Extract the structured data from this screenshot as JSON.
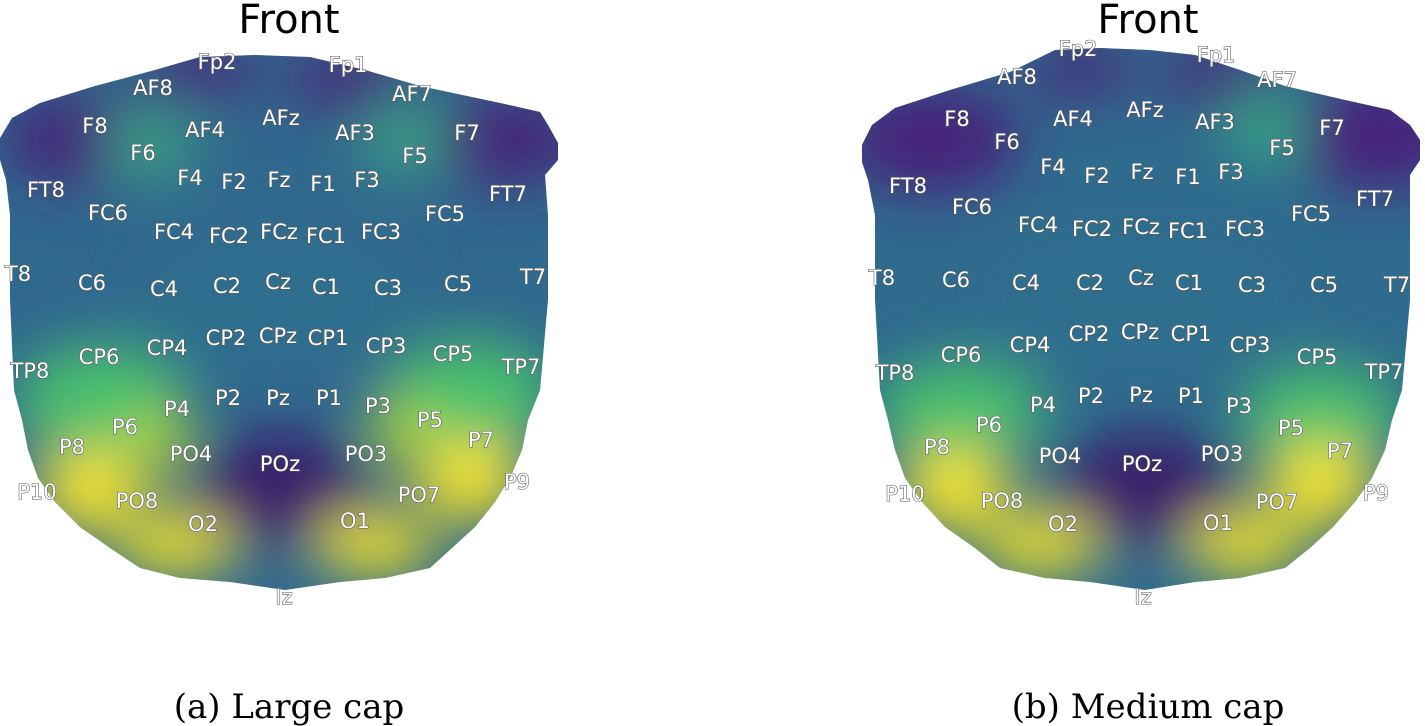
{
  "panels": [
    {
      "id": "large",
      "title": "Front",
      "caption": "(a) Large cap",
      "electrodes": [
        "Fp2",
        "Fp1",
        "AF8",
        "AF7",
        "AFz",
        "AF4",
        "AF3",
        "F8",
        "F7",
        "F6",
        "F5",
        "F4",
        "F2",
        "Fz",
        "F1",
        "F3",
        "FT8",
        "FT7",
        "FC6",
        "FC5",
        "FC4",
        "FC2",
        "FCz",
        "FC1",
        "FC3",
        "T8",
        "T7",
        "C6",
        "C4",
        "C2",
        "Cz",
        "C1",
        "C3",
        "C5",
        "TP8",
        "TP7",
        "CP6",
        "CP4",
        "CP2",
        "CPz",
        "CP1",
        "CP3",
        "CP5",
        "P4",
        "P2",
        "Pz",
        "P1",
        "P3",
        "P6",
        "P5",
        "P8",
        "P7",
        "PO4",
        "POz",
        "PO3",
        "P10",
        "P9",
        "PO8",
        "PO7",
        "O2",
        "O1",
        "Iz"
      ]
    },
    {
      "id": "medium",
      "title": "Front",
      "caption": "(b) Medium cap",
      "electrodes": [
        "Fp2",
        "Fp1",
        "AF8",
        "AF7",
        "AFz",
        "AF4",
        "AF3",
        "F8",
        "F7",
        "F6",
        "F5",
        "F4",
        "F2",
        "Fz",
        "F1",
        "F3",
        "FT8",
        "FT7",
        "FC6",
        "FC5",
        "FC4",
        "FC2",
        "FCz",
        "FC1",
        "FC3",
        "T8",
        "T7",
        "C6",
        "C4",
        "C2",
        "Cz",
        "C1",
        "C3",
        "C5",
        "TP8",
        "TP7",
        "CP6",
        "CP4",
        "CP2",
        "CPz",
        "CP1",
        "CP3",
        "CP5",
        "P4",
        "P2",
        "Pz",
        "P1",
        "P3",
        "P6",
        "P5",
        "P8",
        "P7",
        "PO4",
        "POz",
        "PO3",
        "P10",
        "P9",
        "PO8",
        "PO7",
        "O2",
        "O1",
        "Iz"
      ]
    }
  ],
  "colormap": {
    "name": "viridis",
    "low": "#440154",
    "mid": "#21908c",
    "high": "#fde725"
  }
}
